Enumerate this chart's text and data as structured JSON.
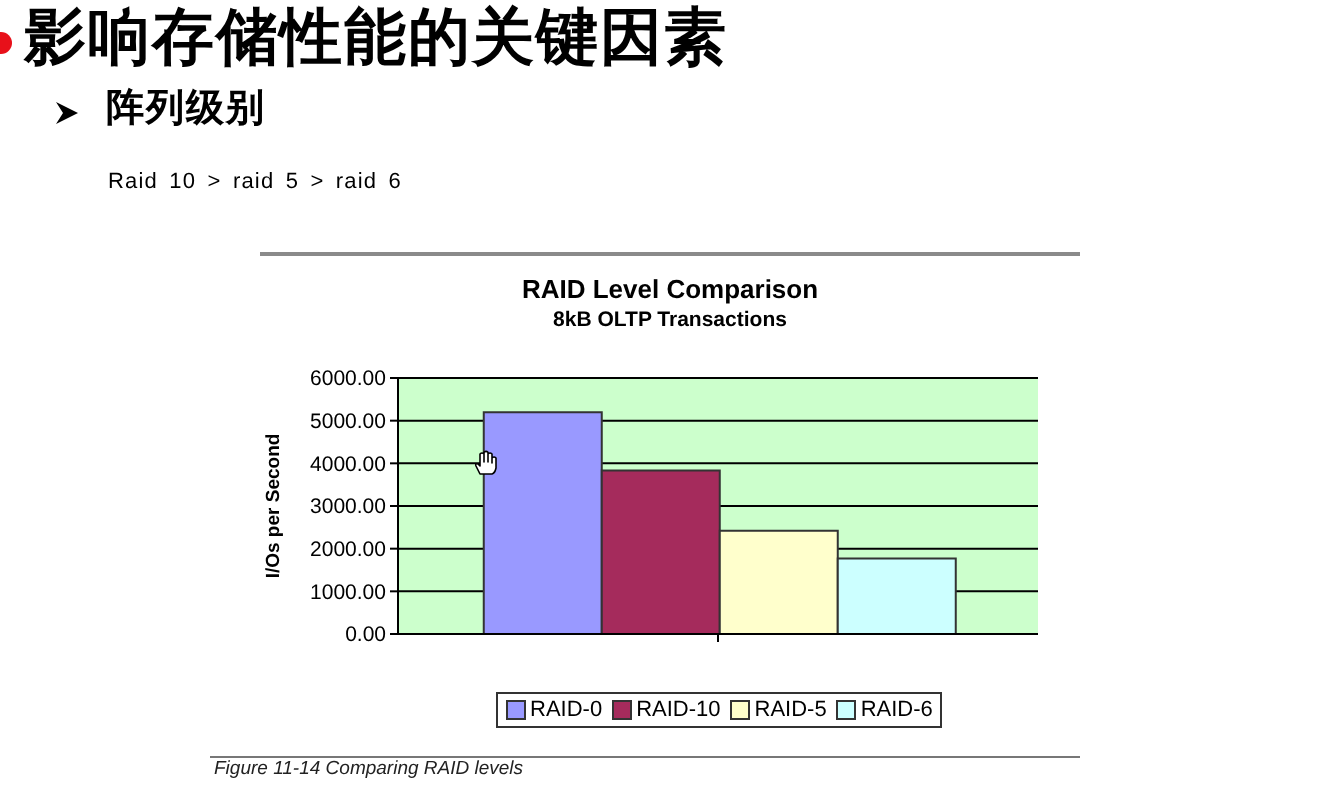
{
  "chart_data": {
    "type": "bar",
    "title": "RAID Level Comparison",
    "subtitle": "8kB OLTP Transactions",
    "ylabel": "I/Os per Second",
    "annotations": [
      "影响存储性能的关键因素",
      "阵列级别",
      "Raid 10 > raid 5 > raid 6",
      "Figure 11-14 Comparing RAID levels"
    ],
    "categories": [
      null
    ],
    "series": [
      {
        "name": "RAID-0",
        "color": "#9999ff",
        "values": [
          5200
        ]
      },
      {
        "name": "RAID-10",
        "color": "#a52b5c",
        "values": [
          3830
        ]
      },
      {
        "name": "RAID-5",
        "color": "#ffffcc",
        "values": [
          2420
        ]
      },
      {
        "name": "RAID-6",
        "color": "#ccffff",
        "values": [
          1770
        ]
      }
    ],
    "ylim": [
      0,
      6000
    ],
    "yticks": [
      {
        "value": 0,
        "label": "0.00"
      },
      {
        "value": 1000,
        "label": "1000.00"
      },
      {
        "value": 2000,
        "label": "2000.00"
      },
      {
        "value": 3000,
        "label": "3000.00"
      },
      {
        "value": 4000,
        "label": "4000.00"
      },
      {
        "value": 5000,
        "label": "5000.00"
      },
      {
        "value": 6000,
        "label": "6000.00"
      }
    ],
    "grid": "y",
    "legend": "bottom"
  }
}
